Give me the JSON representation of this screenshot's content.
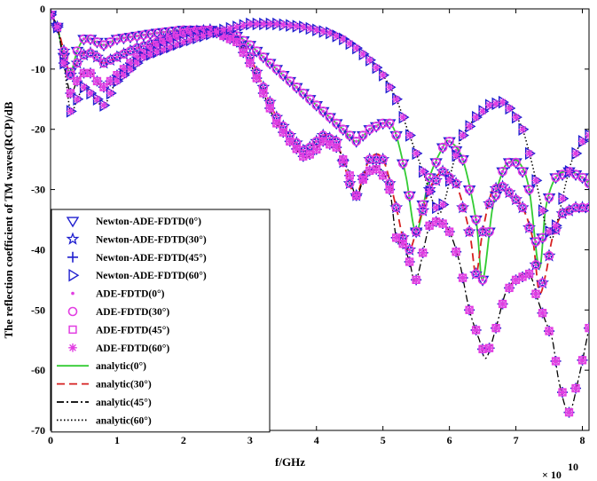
{
  "chart_data": {
    "type": "line",
    "title": "",
    "xlabel": "f/GHz",
    "ylabel": "The reflection coefficient of TM waves(RCP)/dB",
    "x_exponent_label": "× 10",
    "x_exponent_power": "10",
    "xlim": [
      0,
      8.1
    ],
    "ylim": [
      -70,
      0
    ],
    "xticks": [
      "0",
      "1",
      "2",
      "3",
      "4",
      "5",
      "6",
      "7",
      "8"
    ],
    "yticks": [
      "0",
      "-10",
      "-20",
      "-30",
      "-40",
      "-50",
      "-60",
      "-70"
    ],
    "legend_location": "left",
    "legend": [
      {
        "label": "Newton-ADE-FDTD(0°)",
        "marker": "tri-down",
        "color": "#1f1fcf"
      },
      {
        "label": "Newton-ADE-FDTD(30°)",
        "marker": "star",
        "color": "#1f1fcf"
      },
      {
        "label": "Newton-ADE-FDTD(45°)",
        "marker": "plus",
        "color": "#1f1fcf"
      },
      {
        "label": "Newton-ADE-FDTD(60°)",
        "marker": "tri-right",
        "color": "#1f1fcf"
      },
      {
        "label": "ADE-FDTD(0°)",
        "marker": "dot",
        "color": "#e23ee2"
      },
      {
        "label": "ADE-FDTD(30°)",
        "marker": "circle",
        "color": "#e23ee2"
      },
      {
        "label": "ADE-FDTD(45°)",
        "marker": "square",
        "color": "#e23ee2"
      },
      {
        "label": "ADE-FDTD(60°)",
        "marker": "asterisk",
        "color": "#e23ee2"
      },
      {
        "label": "analytic(0°)",
        "line": "solid",
        "color": "#33cc33"
      },
      {
        "label": "analytic(30°)",
        "line": "dashed",
        "color": "#d62020"
      },
      {
        "label": "analytic(45°)",
        "line": "dashdot",
        "color": "#000000"
      },
      {
        "label": "analytic(60°)",
        "line": "dotted",
        "color": "#000000"
      }
    ],
    "series": [
      {
        "name": "0°",
        "x": [
          0,
          0.1,
          0.2,
          0.3,
          0.4,
          0.5,
          0.6,
          0.8,
          1.0,
          1.3,
          1.6,
          2.0,
          2.4,
          2.8,
          3.0,
          3.2,
          3.4,
          3.6,
          3.8,
          4.0,
          4.2,
          4.4,
          4.6,
          4.8,
          5.0,
          5.1,
          5.2,
          5.35,
          5.5,
          5.7,
          5.9,
          6.0,
          6.2,
          6.4,
          6.5,
          6.65,
          6.8,
          6.9,
          7.05,
          7.2,
          7.35,
          7.45,
          7.6,
          7.8,
          8.0,
          8.1
        ],
        "values": [
          -1,
          -3,
          -8,
          -10.5,
          -7,
          -5,
          -5,
          -6,
          -5,
          -4.5,
          -4,
          -3.5,
          -3.5,
          -4.5,
          -6,
          -8,
          -10,
          -12,
          -14,
          -16,
          -18,
          -20,
          -22,
          -20,
          -19,
          -19,
          -21,
          -28,
          -37,
          -28,
          -23,
          -22,
          -25,
          -35,
          -45,
          -33,
          -27,
          -25.5,
          -25.5,
          -30,
          -43,
          -33,
          -28,
          -27,
          -28,
          -29
        ]
      },
      {
        "name": "30°",
        "x": [
          0,
          0.1,
          0.2,
          0.3,
          0.4,
          0.55,
          0.7,
          0.8,
          1.0,
          1.3,
          1.6,
          2.0,
          2.4,
          2.8,
          3.0,
          3.2,
          3.4,
          3.6,
          3.8,
          3.9,
          4.1,
          4.3,
          4.5,
          4.6,
          4.8,
          5.0,
          5.2,
          5.3,
          5.4,
          5.5,
          5.7,
          5.9,
          6.1,
          6.3,
          6.4,
          6.5,
          6.65,
          6.8,
          6.95,
          7.1,
          7.25,
          7.35,
          7.45,
          7.55,
          7.7,
          7.9,
          8.1
        ],
        "values": [
          -1,
          -3,
          -7,
          -11,
          -9,
          -7,
          -8,
          -9,
          -8,
          -6.5,
          -5.5,
          -4,
          -3.5,
          -5,
          -8,
          -13,
          -18,
          -21,
          -23.5,
          -23,
          -21,
          -22,
          -29,
          -31,
          -25,
          -25,
          -33,
          -38,
          -40,
          -37,
          -30,
          -27,
          -29,
          -37,
          -44,
          -37,
          -30,
          -29.5,
          -31,
          -33,
          -38,
          -47,
          -44,
          -38,
          -34,
          -33,
          -33
        ]
      },
      {
        "name": "45°",
        "x": [
          0,
          0.1,
          0.2,
          0.3,
          0.4,
          0.55,
          0.7,
          0.8,
          1.0,
          1.3,
          1.6,
          2.0,
          2.4,
          2.8,
          3.0,
          3.2,
          3.4,
          3.6,
          3.8,
          3.95,
          4.1,
          4.3,
          4.45,
          4.6,
          4.75,
          4.95,
          5.1,
          5.2,
          5.3,
          5.4,
          5.5,
          5.7,
          5.85,
          6.0,
          6.15,
          6.3,
          6.45,
          6.55,
          6.7,
          6.85,
          7.0,
          7.2,
          7.35,
          7.45,
          7.55,
          7.65,
          7.8,
          7.95,
          8.1
        ],
        "values": [
          -1,
          -3,
          -9,
          -14,
          -12,
          -10,
          -12,
          -13,
          -11,
          -8,
          -6,
          -4,
          -3.5,
          -5.5,
          -9,
          -14,
          -19,
          -22,
          -24.5,
          -24,
          -22,
          -23,
          -26,
          -31,
          -27,
          -26.5,
          -30,
          -38,
          -39,
          -42,
          -45,
          -36,
          -35,
          -37,
          -42,
          -50,
          -55,
          -58,
          -53,
          -47,
          -45,
          -44,
          -49,
          -52,
          -55,
          -62,
          -67,
          -61,
          -53
        ]
      },
      {
        "name": "60°",
        "x": [
          0,
          0.1,
          0.2,
          0.3,
          0.4,
          0.5,
          0.6,
          0.8,
          1.0,
          1.4,
          2.0,
          2.6,
          3.0,
          3.4,
          3.8,
          4.2,
          4.4,
          4.6,
          4.8,
          5.0,
          5.2,
          5.4,
          5.6,
          5.75,
          5.85,
          5.95,
          6.05,
          6.2,
          6.4,
          6.6,
          6.8,
          6.95,
          7.1,
          7.25,
          7.35,
          7.45,
          7.55,
          7.65,
          7.75,
          7.85,
          8.0,
          8.1
        ],
        "values": [
          -1,
          -3,
          -9,
          -17,
          -15,
          -13,
          -14,
          -16,
          -12,
          -8,
          -5.5,
          -3.5,
          -2.5,
          -2.5,
          -3,
          -4,
          -5,
          -6.5,
          -8.5,
          -11,
          -15,
          -21,
          -27,
          -32,
          -34,
          -31,
          -26,
          -21,
          -18,
          -16,
          -15.5,
          -17,
          -20,
          -26,
          -31,
          -36,
          -38,
          -34,
          -29,
          -25,
          -22,
          -21
        ]
      }
    ]
  }
}
